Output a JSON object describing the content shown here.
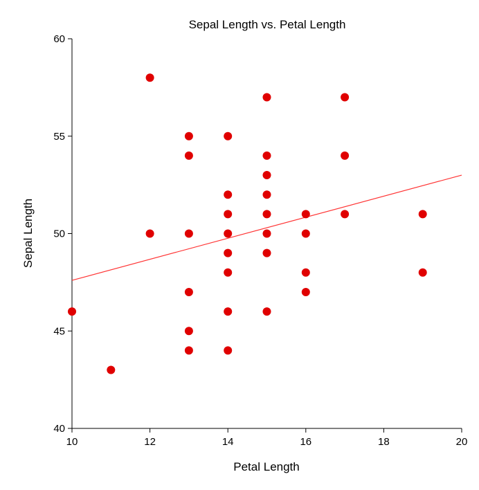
{
  "chart_data": {
    "type": "scatter",
    "title": "Sepal Length vs. Petal Length",
    "xlabel": "Petal Length",
    "ylabel": "Sepal Length",
    "xlim": [
      10,
      20
    ],
    "ylim": [
      40,
      60
    ],
    "xticks": [
      "10",
      "12",
      "14",
      "16",
      "18",
      "20"
    ],
    "yticks": [
      "40",
      "45",
      "50",
      "55",
      "60"
    ],
    "grid": false,
    "point_color": "#e00000",
    "line_color": "#ff3333",
    "points": [
      {
        "x": 10,
        "y": 46
      },
      {
        "x": 11,
        "y": 43
      },
      {
        "x": 12,
        "y": 58
      },
      {
        "x": 12,
        "y": 50
      },
      {
        "x": 13,
        "y": 55
      },
      {
        "x": 13,
        "y": 54
      },
      {
        "x": 13,
        "y": 50
      },
      {
        "x": 13,
        "y": 47
      },
      {
        "x": 13,
        "y": 45
      },
      {
        "x": 13,
        "y": 44
      },
      {
        "x": 14,
        "y": 55
      },
      {
        "x": 14,
        "y": 52
      },
      {
        "x": 14,
        "y": 51
      },
      {
        "x": 14,
        "y": 50
      },
      {
        "x": 14,
        "y": 49
      },
      {
        "x": 14,
        "y": 48
      },
      {
        "x": 14,
        "y": 46
      },
      {
        "x": 14,
        "y": 44
      },
      {
        "x": 15,
        "y": 57
      },
      {
        "x": 15,
        "y": 54
      },
      {
        "x": 15,
        "y": 53
      },
      {
        "x": 15,
        "y": 52
      },
      {
        "x": 15,
        "y": 51
      },
      {
        "x": 15,
        "y": 50
      },
      {
        "x": 15,
        "y": 49
      },
      {
        "x": 15,
        "y": 46
      },
      {
        "x": 16,
        "y": 51
      },
      {
        "x": 16,
        "y": 50
      },
      {
        "x": 16,
        "y": 48
      },
      {
        "x": 16,
        "y": 47
      },
      {
        "x": 17,
        "y": 57
      },
      {
        "x": 17,
        "y": 54
      },
      {
        "x": 17,
        "y": 51
      },
      {
        "x": 19,
        "y": 51
      },
      {
        "x": 19,
        "y": 48
      }
    ],
    "trendline": {
      "x": [
        10,
        20
      ],
      "y": [
        47.6,
        53.0
      ]
    }
  }
}
